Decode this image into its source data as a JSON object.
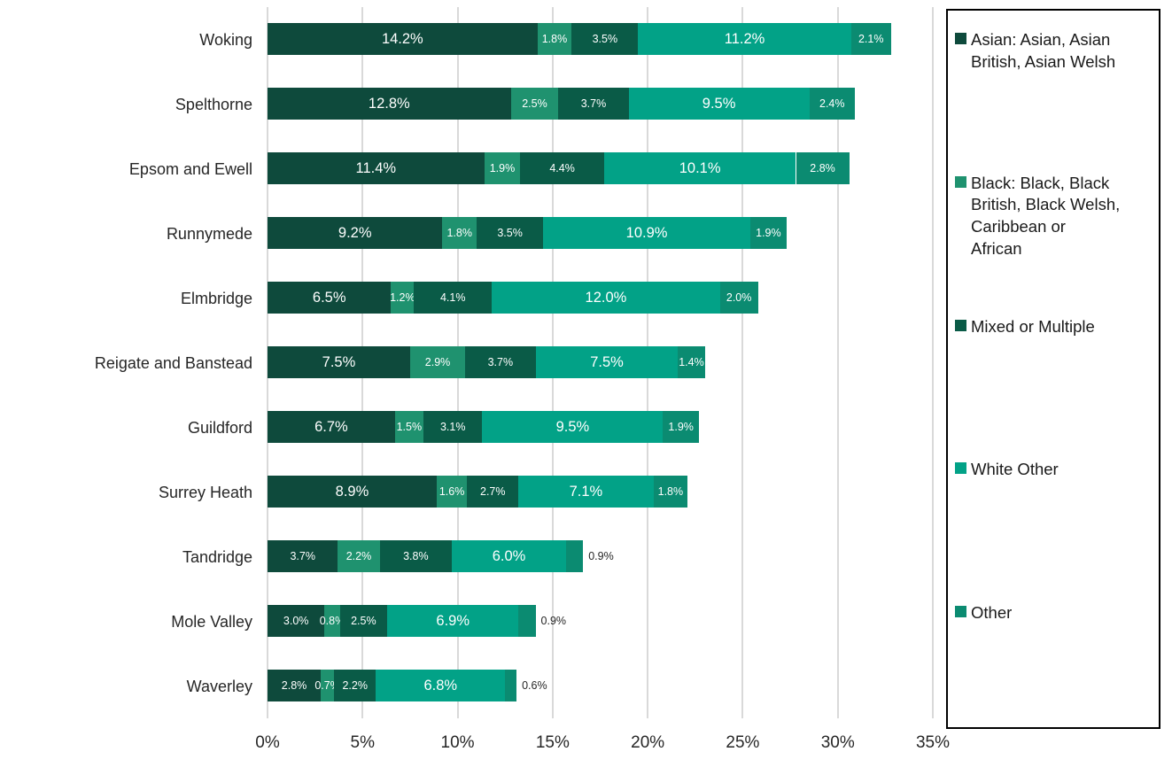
{
  "chart_data": {
    "type": "bar",
    "orientation": "horizontal",
    "stacked": true,
    "grid": true,
    "legend_position": "right",
    "xlim": [
      0,
      35
    ],
    "x_tick_step": 5,
    "x_ticks": [
      "0%",
      "5%",
      "10%",
      "15%",
      "20%",
      "25%",
      "30%",
      "35%"
    ],
    "categories": [
      "Woking",
      "Spelthorne",
      "Epsom and Ewell",
      "Runnymede",
      "Elmbridge",
      "Reigate and Banstead",
      "Guildford",
      "Surrey Heath",
      "Tandridge",
      "Mole Valley",
      "Waverley"
    ],
    "series": [
      {
        "name": "Asian: Asian, Asian British, Asian Welsh",
        "label_lines": [
          "Asian: Asian, Asian",
          "British, Asian Welsh"
        ],
        "color": "#0e4a3c",
        "values": [
          14.2,
          12.8,
          11.4,
          9.2,
          6.5,
          7.5,
          6.7,
          8.9,
          3.7,
          3.0,
          2.8
        ]
      },
      {
        "name": "Black: Black, Black British, Black Welsh, Caribbean or African",
        "label_lines": [
          "Black: Black, Black",
          "British, Black Welsh,",
          "Caribbean or",
          "African"
        ],
        "color": "#1f926f",
        "values": [
          1.8,
          2.5,
          1.9,
          1.8,
          1.2,
          2.9,
          1.5,
          1.6,
          2.2,
          0.8,
          0.7
        ]
      },
      {
        "name": "Mixed or Multiple",
        "label_lines": [
          "Mixed or Multiple"
        ],
        "color": "#0a5b47",
        "values": [
          3.5,
          3.7,
          4.4,
          3.5,
          4.1,
          3.7,
          3.1,
          2.7,
          3.8,
          2.5,
          2.2
        ]
      },
      {
        "name": "White Other",
        "label_lines": [
          "White Other"
        ],
        "color": "#02a287",
        "values": [
          11.2,
          9.5,
          10.1,
          10.9,
          12.0,
          7.5,
          9.5,
          7.1,
          6.0,
          6.9,
          6.8
        ]
      },
      {
        "name": "Other",
        "label_lines": [
          "Other"
        ],
        "color": "#0b8b71",
        "values": [
          2.1,
          2.4,
          2.8,
          1.9,
          2.0,
          1.4,
          1.9,
          1.8,
          0.9,
          0.9,
          0.6
        ]
      }
    ],
    "label_format": "one_decimal_percent",
    "colors": {
      "gridline": "#d9d9d9",
      "axis_text": "#262626",
      "inside_label": "#ffffff",
      "outside_label": "#262626",
      "legend_border": "#000000"
    }
  }
}
